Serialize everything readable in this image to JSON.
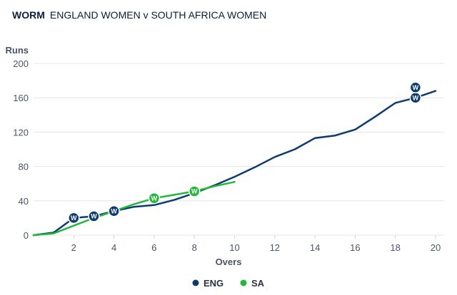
{
  "header": {
    "tag": "WORM",
    "match": "ENGLAND WOMEN v SOUTH AFRICA WOMEN"
  },
  "chart_data": {
    "type": "line",
    "title": "WORM ENGLAND WOMEN v SOUTH AFRICA WOMEN",
    "xlabel": "Overs",
    "ylabel": "Runs",
    "xlim": [
      0,
      20
    ],
    "ylim": [
      0,
      200
    ],
    "xticks": [
      "2",
      "4",
      "6",
      "8",
      "10",
      "12",
      "14",
      "16",
      "18",
      "20"
    ],
    "yticks": [
      "0",
      "40",
      "80",
      "120",
      "160",
      "200"
    ],
    "grid": true,
    "legend": "bottom-center",
    "wicket_marker_label": "W",
    "series": [
      {
        "name": "ENG",
        "color": "#0d3b6e",
        "x": [
          0,
          1,
          2,
          3,
          4,
          5,
          6,
          7,
          8,
          9,
          10,
          11,
          12,
          13,
          14,
          15,
          16,
          17,
          18,
          19,
          20
        ],
        "y": [
          0,
          3,
          20,
          22,
          28,
          33,
          35,
          41,
          49,
          58,
          68,
          79,
          91,
          100,
          113,
          116,
          123,
          138,
          154,
          160,
          168
        ],
        "wickets": [
          [
            2,
            20
          ],
          [
            3,
            22
          ],
          [
            4,
            28
          ],
          [
            19,
            160
          ],
          [
            19,
            172
          ]
        ]
      },
      {
        "name": "SA",
        "color": "#22b83a",
        "x": [
          0,
          1,
          2,
          3,
          4,
          5,
          6,
          7,
          8,
          9,
          10
        ],
        "y": [
          0,
          2,
          11,
          20,
          28,
          36,
          43,
          47,
          51,
          57,
          62
        ],
        "wickets": [
          [
            6,
            43
          ],
          [
            8,
            51
          ]
        ]
      }
    ]
  }
}
